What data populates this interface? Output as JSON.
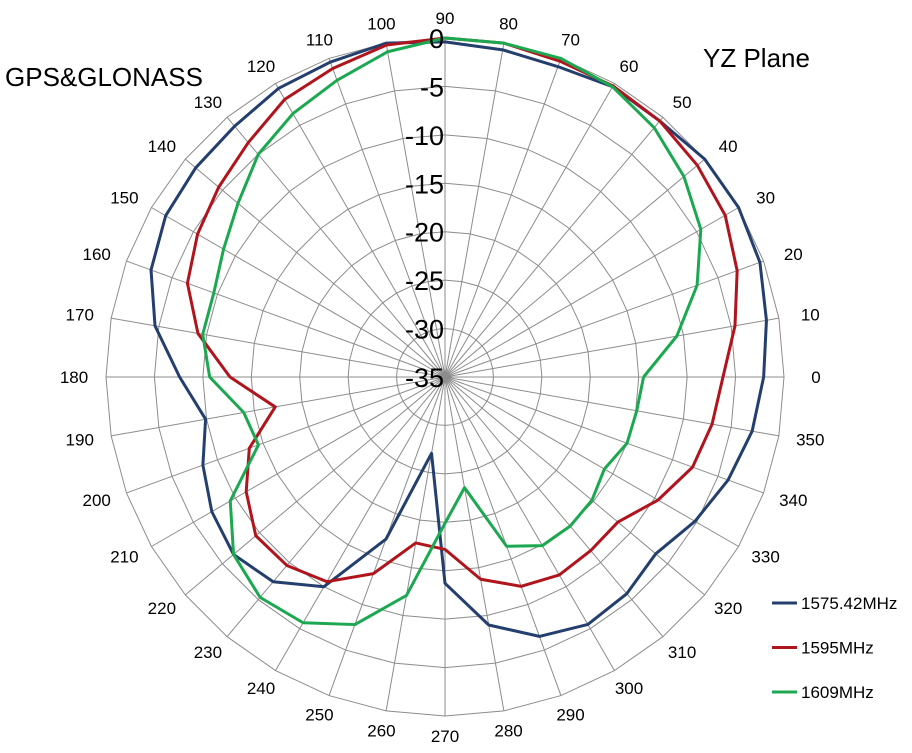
{
  "chart_data": {
    "type": "radar",
    "title_left": "GPS&GLONASS",
    "title_right": "YZ Plane",
    "angle_ticks": [
      0,
      10,
      20,
      30,
      40,
      50,
      60,
      70,
      80,
      90,
      100,
      110,
      120,
      130,
      140,
      150,
      160,
      170,
      180,
      190,
      200,
      210,
      220,
      230,
      240,
      250,
      260,
      270,
      280,
      290,
      300,
      310,
      320,
      330,
      340,
      350
    ],
    "radial_ticks": [
      0,
      -5,
      -10,
      -15,
      -20,
      -25,
      -30,
      -35
    ],
    "rlim": [
      -35,
      0
    ],
    "grid": true,
    "legend_position": "bottom-right",
    "series": [
      {
        "name": "1575.42MHz",
        "color": "#243f6e",
        "values": [
          -2.1,
          -1.3,
          -0.4,
          0,
          0,
          -0.5,
          -0.4,
          -0.9,
          -0.7,
          -0.4,
          0,
          -0.4,
          -0.6,
          -1.2,
          -1.4,
          -1.7,
          -2.7,
          -4.6,
          -7.6,
          -9.9,
          -8.4,
          -7.2,
          -6.5,
          -7.4,
          -10,
          -17.2,
          -27,
          -13.7,
          -9,
          -6.5,
          -5.5,
          -5.8,
          -6.6,
          -5.2,
          -3.9,
          -2.8
        ]
      },
      {
        "name": "1595MHz",
        "color": "#b0141c",
        "values": [
          -6.3,
          -4.6,
          -2.9,
          -1.6,
          -1.0,
          -0.5,
          -0.3,
          -0.3,
          0,
          0,
          -0.2,
          -1.1,
          -1.9,
          -3.4,
          -4.5,
          -5.5,
          -6.7,
          -9.1,
          -12.8,
          -17.2,
          -13.5,
          -11.3,
          -9.5,
          -9.6,
          -10.6,
          -13.4,
          -17.6,
          -17.2,
          -13.8,
          -12,
          -11.4,
          -11.6,
          -11.7,
          -9.6,
          -7.8,
          -7
        ]
      },
      {
        "name": "1609MHz",
        "color": "#1ca850",
        "values": [
          -14.5,
          -10.7,
          -7.3,
          -4.5,
          -2.8,
          -1.4,
          -0.4,
          0,
          0,
          0,
          -0.9,
          -2.4,
          -3.6,
          -5,
          -7.1,
          -8.6,
          -9.6,
          -9.6,
          -10.7,
          -13.9,
          -14.5,
          -9.4,
          -6.5,
          -5.3,
          -5.7,
          -7.8,
          -12.1,
          -19.9,
          -23.4,
          -16.4,
          -14.9,
          -14.9,
          -15.2,
          -16,
          -15,
          -14.9
        ]
      }
    ]
  }
}
